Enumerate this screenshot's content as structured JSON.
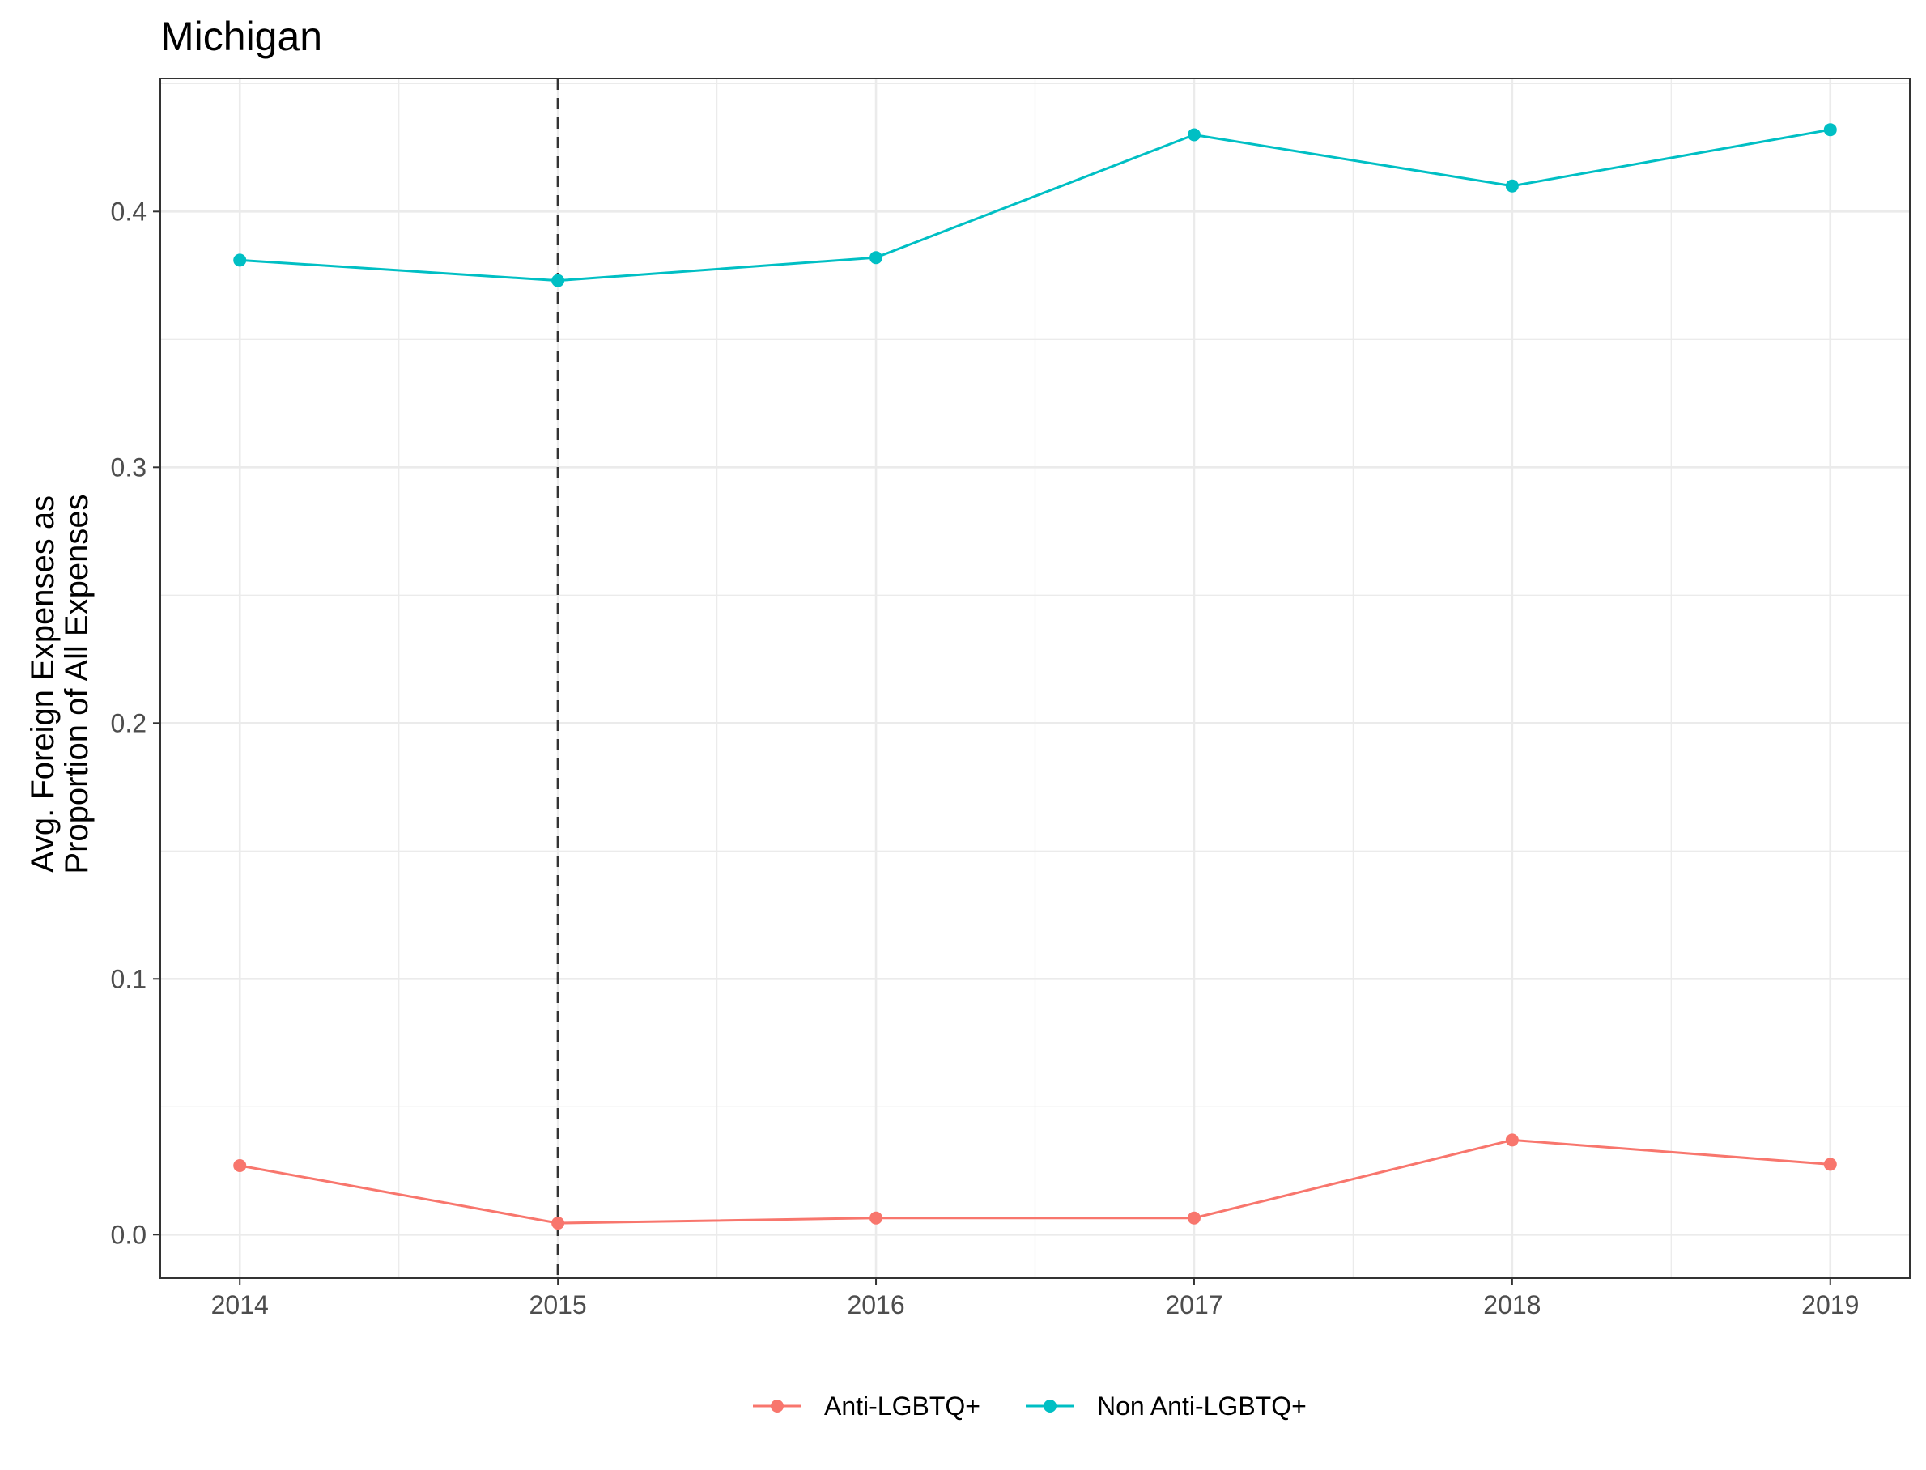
{
  "chart_data": {
    "type": "line",
    "title": "Michigan",
    "xlabel": "",
    "ylabel": [
      "Avg. Foreign Expenses as",
      "Proportion of All Expenses"
    ],
    "x": [
      2014,
      2015,
      2016,
      2017,
      2018,
      2019
    ],
    "x_ticks": [
      "2014",
      "2015",
      "2016",
      "2017",
      "2018",
      "2019"
    ],
    "y_ticks": [
      "0.0",
      "0.1",
      "0.2",
      "0.3",
      "0.4"
    ],
    "xlim": [
      2013.75,
      2019.25
    ],
    "ylim": [
      -0.017,
      0.452
    ],
    "grid": true,
    "reference_line": {
      "x": 2015,
      "style": "dashed",
      "color": "#333333"
    },
    "legend_position": "bottom",
    "series": [
      {
        "name": "Anti-LGBTQ+",
        "color": "#F8766D",
        "values": [
          0.027,
          0.0045,
          0.0065,
          0.0065,
          0.037,
          0.0275
        ]
      },
      {
        "name": "Non Anti-LGBTQ+",
        "color": "#00BFC4",
        "values": [
          0.381,
          0.373,
          0.382,
          0.43,
          0.41,
          0.432
        ]
      }
    ]
  }
}
